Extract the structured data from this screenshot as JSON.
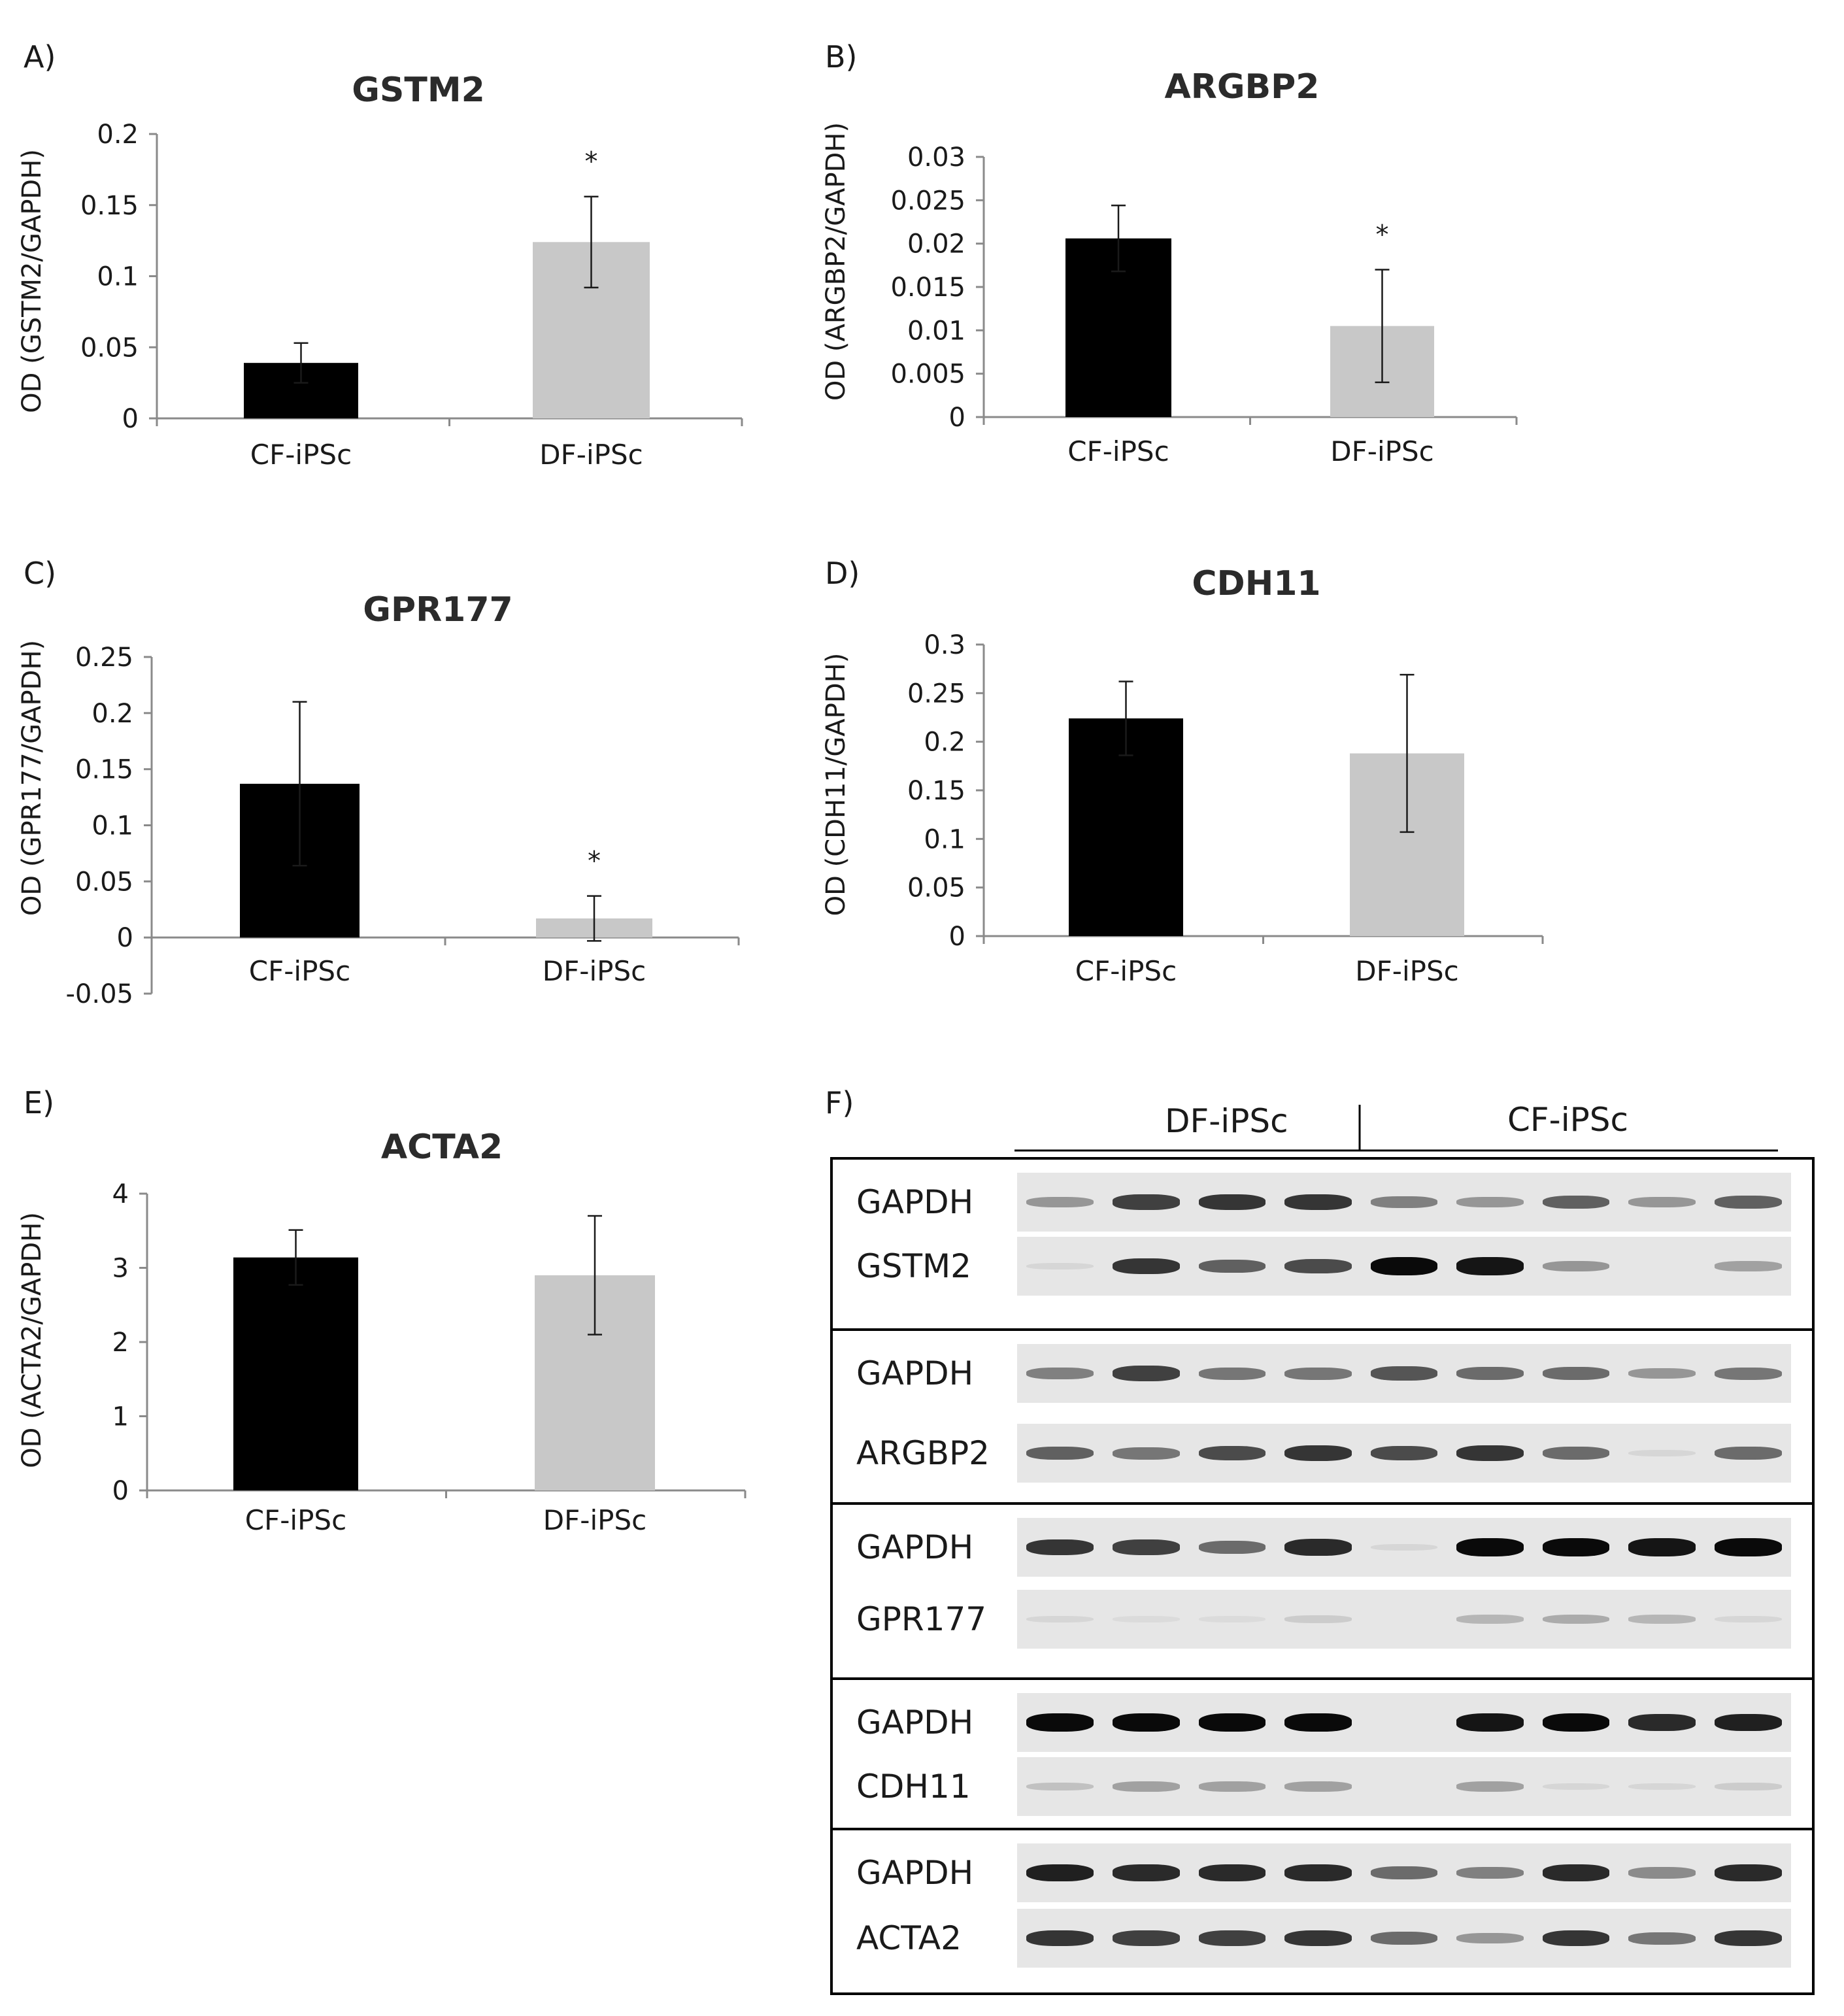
{
  "chart_data": [
    {
      "panel": "A)",
      "type": "bar",
      "title": "GSTM2",
      "ylabel": "OD (GSTM2/GAPDH)",
      "xlabel": "",
      "categories": [
        "CF-iPSc",
        "DF-iPSc"
      ],
      "values": [
        0.039,
        0.124
      ],
      "errors": [
        0.014,
        0.032
      ],
      "significance": [
        "",
        "*"
      ],
      "yticks": [
        "0",
        "0.05",
        "0.1",
        "0.15",
        "0.2"
      ],
      "ylim": [
        0,
        0.2
      ],
      "colors": [
        "#000000",
        "#c8c8c8"
      ]
    },
    {
      "panel": "B)",
      "type": "bar",
      "title": "ARGBP2",
      "ylabel": "OD (ARGBP2/GAPDH)",
      "xlabel": "",
      "categories": [
        "CF-iPSc",
        "DF-iPSc"
      ],
      "values": [
        0.0206,
        0.0105
      ],
      "errors": [
        0.0038,
        0.0065
      ],
      "significance": [
        "",
        "*"
      ],
      "yticks": [
        "0",
        "0.005",
        "0.01",
        "0.015",
        "0.02",
        "0.025",
        "0.03"
      ],
      "ylim": [
        0,
        0.03
      ],
      "colors": [
        "#000000",
        "#c8c8c8"
      ]
    },
    {
      "panel": "C)",
      "type": "bar",
      "title": "GPR177",
      "ylabel": "OD (GPR177/GAPDH)",
      "xlabel": "",
      "categories": [
        "CF-iPSc",
        "DF-iPSc"
      ],
      "values": [
        0.137,
        0.017
      ],
      "errors": [
        0.073,
        0.02
      ],
      "significance": [
        "",
        "*"
      ],
      "yticks": [
        "-0.05",
        "0",
        "0.05",
        "0.1",
        "0.15",
        "0.2",
        "0.25"
      ],
      "ylim": [
        -0.05,
        0.25
      ],
      "colors": [
        "#000000",
        "#c8c8c8"
      ]
    },
    {
      "panel": "D)",
      "type": "bar",
      "title": "CDH11",
      "ylabel": "OD (CDH11/GAPDH)",
      "xlabel": "",
      "categories": [
        "CF-iPSc",
        "DF-iPSc"
      ],
      "values": [
        0.224,
        0.188
      ],
      "errors": [
        0.038,
        0.081
      ],
      "significance": [
        "",
        ""
      ],
      "yticks": [
        "0",
        "0.05",
        "0.1",
        "0.15",
        "0.2",
        "0.25",
        "0.3"
      ],
      "ylim": [
        0,
        0.3
      ],
      "colors": [
        "#000000",
        "#c8c8c8"
      ]
    },
    {
      "panel": "E)",
      "type": "bar",
      "title": "ACTA2",
      "ylabel": "OD (ACTA2/GAPDH)",
      "xlabel": "",
      "categories": [
        "CF-iPSc",
        "DF-iPSc"
      ],
      "values": [
        3.14,
        2.9
      ],
      "errors": [
        0.37,
        0.8
      ],
      "significance": [
        "",
        ""
      ],
      "yticks": [
        "0",
        "1",
        "2",
        "3",
        "4"
      ],
      "ylim": [
        0,
        4
      ],
      "colors": [
        "#000000",
        "#c8c8c8"
      ]
    }
  ],
  "blot": {
    "panel": "F)",
    "groups": [
      "DF-iPSc",
      "CF-iPSc"
    ],
    "sections": [
      {
        "rows": [
          {
            "label": "GAPDH",
            "intensity": [
              0.35,
              0.75,
              0.8,
              0.8,
              0.45,
              0.35,
              0.6,
              0.35,
              0.6
            ]
          },
          {
            "label": "GSTM2",
            "intensity": [
              0.05,
              0.8,
              0.6,
              0.7,
              1.0,
              0.95,
              0.35,
              0.0,
              0.3
            ]
          }
        ]
      },
      {
        "rows": [
          {
            "label": "GAPDH",
            "intensity": [
              0.45,
              0.75,
              0.5,
              0.5,
              0.65,
              0.55,
              0.55,
              0.35,
              0.5
            ]
          },
          {
            "label": "ARGBP2",
            "intensity": [
              0.6,
              0.5,
              0.7,
              0.8,
              0.7,
              0.8,
              0.55,
              0.05,
              0.55
            ]
          }
        ]
      },
      {
        "rows": [
          {
            "label": "GAPDH",
            "intensity": [
              0.8,
              0.75,
              0.55,
              0.85,
              0.05,
              1.0,
              1.0,
              0.95,
              1.0
            ]
          },
          {
            "label": "GPR177",
            "intensity": [
              0.05,
              0.03,
              0.03,
              0.1,
              0.0,
              0.2,
              0.25,
              0.2,
              0.05
            ]
          }
        ]
      },
      {
        "rows": [
          {
            "label": "GAPDH",
            "intensity": [
              1.0,
              1.0,
              1.0,
              1.0,
              0.0,
              0.95,
              1.0,
              0.85,
              0.9
            ]
          },
          {
            "label": "CDH11",
            "intensity": [
              0.15,
              0.3,
              0.3,
              0.3,
              0.0,
              0.3,
              0.05,
              0.05,
              0.1
            ]
          }
        ]
      },
      {
        "rows": [
          {
            "label": "GAPDH",
            "intensity": [
              0.9,
              0.85,
              0.85,
              0.85,
              0.55,
              0.45,
              0.85,
              0.4,
              0.85
            ]
          },
          {
            "label": "ACTA2",
            "intensity": [
              0.8,
              0.75,
              0.75,
              0.8,
              0.55,
              0.35,
              0.8,
              0.5,
              0.8
            ]
          }
        ]
      }
    ]
  }
}
